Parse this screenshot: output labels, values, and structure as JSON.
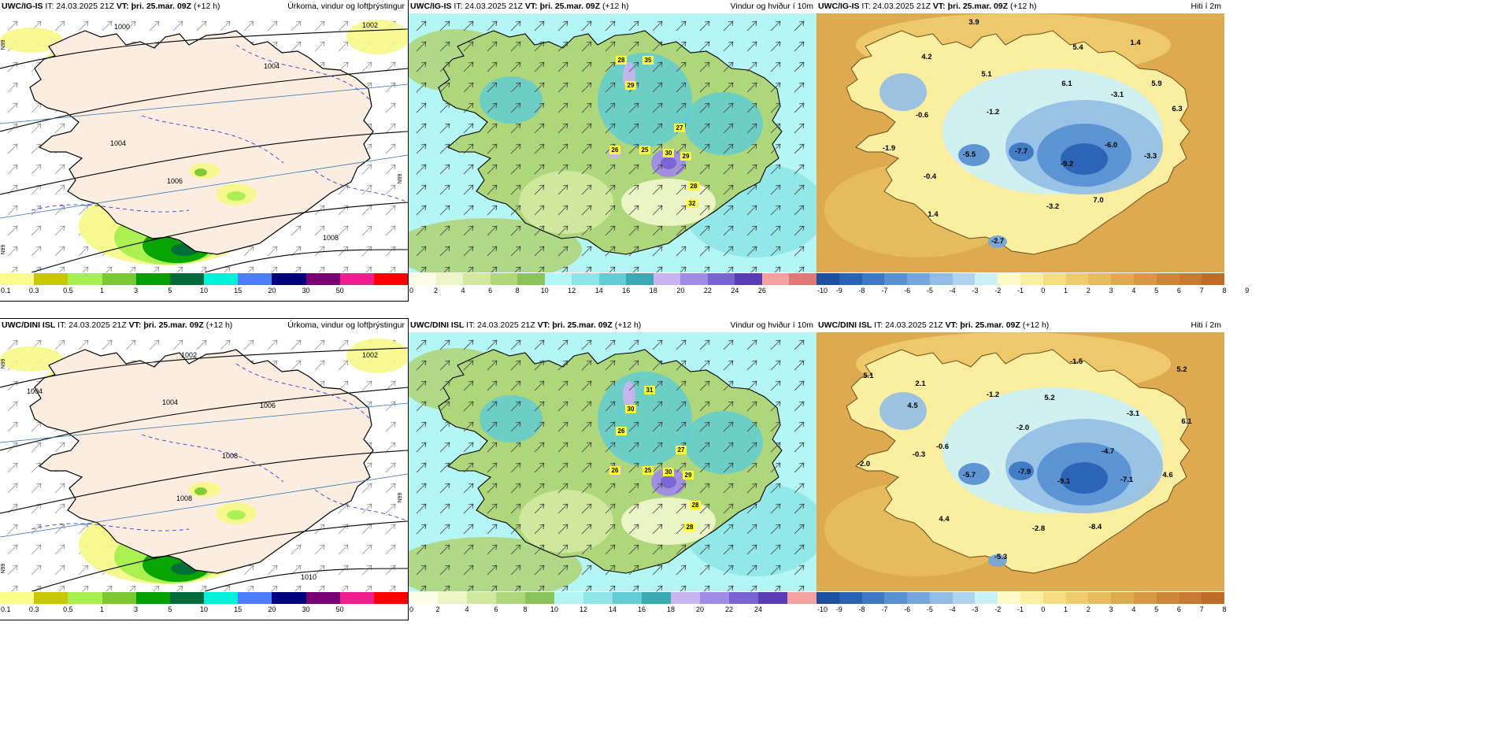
{
  "rows": [
    {
      "panels": [
        {
          "type": "precip",
          "model": "UWC/IG-IS",
          "it": "IT: 24.03.2025 21Z",
          "vt": "VT: þri. 25.mar. 09Z",
          "lead": "(+12 h)",
          "title": "Úrkoma, vindur og loftþrýstingur",
          "colorbar_colors": [
            "#fbfd8c",
            "#c8c800",
            "#a6ef4e",
            "#7cc832",
            "#00a000",
            "#006a3a",
            "#00f0d8",
            "#4e7cff",
            "#00007a",
            "#780074",
            "#f01e8c",
            "#ff0000"
          ],
          "colorbar_ticks": [
            "0.1",
            "0.3",
            "0.5",
            "1",
            "3",
            "5",
            "10",
            "15",
            "20",
            "30",
            "50"
          ],
          "isobar_labels": [
            "1000",
            "1002",
            "1004",
            "1004",
            "1006",
            "1008"
          ],
          "edge_labels": [
            "N99",
            "N99",
            "N99"
          ]
        },
        {
          "type": "wind",
          "model": "UWC/IG-IS",
          "it": "IT: 24.03.2025 21Z",
          "vt": "VT: þri. 25.mar. 09Z",
          "lead": "(+12 h)",
          "title": "Vindur og hviður í 10m",
          "colorbar_colors": [
            "#fdfde8",
            "#eef5c8",
            "#d2e8a0",
            "#aed67a",
            "#8cc25a",
            "#b4f5f5",
            "#8ee5e8",
            "#62cdd2",
            "#3aaab2",
            "#c8b4f0",
            "#a08ce6",
            "#7a64d2",
            "#5a3cb4",
            "#f5a0a0",
            "#e07878"
          ],
          "colorbar_ticks": [
            "0",
            "2",
            "4",
            "6",
            "8",
            "10",
            "12",
            "14",
            "16",
            "18",
            "20",
            "22",
            "24",
            "26"
          ],
          "gust_labels": [
            "28",
            "35",
            "29",
            "27",
            "26",
            "25",
            "30",
            "29",
            "28",
            "32"
          ]
        },
        {
          "type": "temp",
          "model": "UWC/IG-IS",
          "it": "IT: 24.03.2025 21Z",
          "vt": "VT: þri. 25.mar. 09Z",
          "lead": "(+12 h)",
          "title": "Hiti í 2m",
          "colorbar_colors": [
            "#1e4ea0",
            "#2a62b4",
            "#3c78c4",
            "#5890d2",
            "#74a6dc",
            "#92bce6",
            "#b0d2ee",
            "#ccf0f8",
            "#fdfac8",
            "#faeea0",
            "#f5de82",
            "#eecc6e",
            "#e6bc5e",
            "#deaa50",
            "#d69844",
            "#cc8638",
            "#c87a32",
            "#c06a28"
          ],
          "colorbar_ticks": [
            "-10",
            "-9",
            "-8",
            "-7",
            "-6",
            "-5",
            "-4",
            "-3",
            "-2",
            "-1",
            "0",
            "1",
            "2",
            "3",
            "4",
            "5",
            "6",
            "7",
            "8",
            "9"
          ],
          "temp_labels": [
            "3.9",
            "4.2",
            "5.4",
            "1.4",
            "5.1",
            "6.1",
            "-3.1",
            "5.9",
            "-1.2",
            "6.3",
            "-0.6",
            "-6.0",
            "-5.5",
            "-7.7",
            "-3.3",
            "-1.9",
            "-9.2",
            "-0.4",
            "7.0",
            "-3.2",
            "1.4",
            "-2.7"
          ]
        }
      ]
    },
    {
      "panels": [
        {
          "type": "precip",
          "model": "UWC/DINI ISL",
          "it": "IT: 24.03.2025 21Z",
          "vt": "VT: þri. 25.mar. 09Z",
          "lead": "(+12 h)",
          "title": "Úrkoma, vindur og loftþrýstingur",
          "colorbar_colors": [
            "#fbfd8c",
            "#c8c800",
            "#a6ef4e",
            "#7cc832",
            "#00a000",
            "#006a3a",
            "#00f0d8",
            "#4e7cff",
            "#00007a",
            "#780074",
            "#f01e8c",
            "#ff0000"
          ],
          "colorbar_ticks": [
            "0.1",
            "0.3",
            "0.5",
            "1",
            "3",
            "5",
            "10",
            "15",
            "20",
            "30",
            "50"
          ],
          "isobar_labels": [
            "1002",
            "1002",
            "1004",
            "1004",
            "1006",
            "1008",
            "1008",
            "1010"
          ],
          "edge_labels": [
            "N99",
            "N99",
            "N99"
          ]
        },
        {
          "type": "wind",
          "model": "UWC/DINI ISL",
          "it": "IT: 24.03.2025 21Z",
          "vt": "VT: þri. 25.mar. 09Z",
          "lead": "(+12 h)",
          "title": "Vindur og hviður í 10m",
          "colorbar_colors": [
            "#fdfde8",
            "#eef5c8",
            "#d2e8a0",
            "#aed67a",
            "#8cc25a",
            "#b4f5f5",
            "#8ee5e8",
            "#62cdd2",
            "#3aaab2",
            "#c8b4f0",
            "#a08ce6",
            "#7a64d2",
            "#5a3cb4",
            "#f5a0a0"
          ],
          "colorbar_ticks": [
            "0",
            "2",
            "4",
            "6",
            "8",
            "10",
            "12",
            "14",
            "16",
            "18",
            "20",
            "22",
            "24"
          ],
          "gust_labels": [
            "31",
            "30",
            "26",
            "27",
            "26",
            "25",
            "30",
            "29",
            "28",
            "28"
          ]
        },
        {
          "type": "temp",
          "model": "UWC/DINI ISL",
          "it": "IT: 24.03.2025 21Z",
          "vt": "VT: þri. 25.mar. 09Z",
          "lead": "(+12 h)",
          "title": "Hiti í 2m",
          "colorbar_colors": [
            "#1e4ea0",
            "#2a62b4",
            "#3c78c4",
            "#5890d2",
            "#74a6dc",
            "#92bce6",
            "#b0d2ee",
            "#ccf0f8",
            "#fdfac8",
            "#faeea0",
            "#f5de82",
            "#eecc6e",
            "#e6bc5e",
            "#deaa50",
            "#d69844",
            "#cc8638",
            "#c87a32",
            "#c06a28"
          ],
          "colorbar_ticks": [
            "-10",
            "-9",
            "-8",
            "-7",
            "-6",
            "-5",
            "-4",
            "-3",
            "-2",
            "-1",
            "0",
            "1",
            "2",
            "3",
            "4",
            "5",
            "6",
            "7",
            "8"
          ],
          "temp_labels": [
            "-1.5",
            "5.2",
            "5.1",
            "2.1",
            "4.5",
            "-1.2",
            "5.2",
            "-3.1",
            "6.1",
            "-2.0",
            "-0.6",
            "-0.3",
            "-4.7",
            "-2.0",
            "-5.7",
            "-7.9",
            "-9.1",
            "-7.1",
            "4.6",
            "4.4",
            "-2.8",
            "-8.4",
            "-5.3"
          ]
        }
      ]
    }
  ]
}
